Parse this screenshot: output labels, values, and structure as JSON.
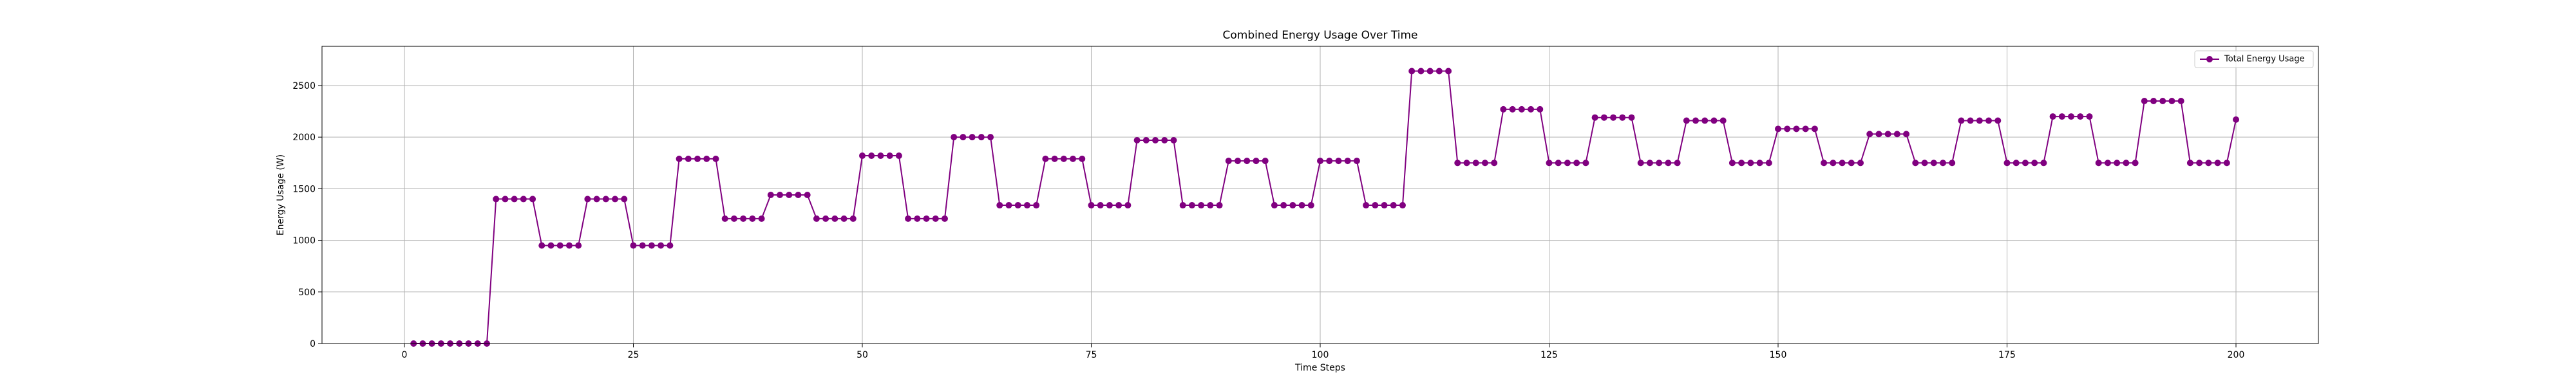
{
  "chart_data": {
    "type": "line",
    "title": "Combined Energy Usage Over Time",
    "xlabel": "Time Steps",
    "ylabel": "Energy Usage (W)",
    "xlim": [
      -9,
      209
    ],
    "ylim": [
      0,
      2880
    ],
    "xticks": [
      0,
      25,
      50,
      75,
      100,
      125,
      150,
      175,
      200
    ],
    "yticks": [
      0,
      500,
      1000,
      1500,
      2000,
      2500
    ],
    "grid": true,
    "legend_position": "top-right",
    "colors": {
      "series": "#800080"
    },
    "series": [
      {
        "name": "Total Energy Usage",
        "marker": "circle",
        "x": [
          1,
          2,
          3,
          4,
          5,
          6,
          7,
          8,
          9,
          10,
          11,
          12,
          13,
          14,
          15,
          16,
          17,
          18,
          19,
          20,
          21,
          22,
          23,
          24,
          25,
          26,
          27,
          28,
          29,
          30,
          31,
          32,
          33,
          34,
          35,
          36,
          37,
          38,
          39,
          40,
          41,
          42,
          43,
          44,
          45,
          46,
          47,
          48,
          49,
          50,
          51,
          52,
          53,
          54,
          55,
          56,
          57,
          58,
          59,
          60,
          61,
          62,
          63,
          64,
          65,
          66,
          67,
          68,
          69,
          70,
          71,
          72,
          73,
          74,
          75,
          76,
          77,
          78,
          79,
          80,
          81,
          82,
          83,
          84,
          85,
          86,
          87,
          88,
          89,
          90,
          91,
          92,
          93,
          94,
          95,
          96,
          97,
          98,
          99,
          100,
          101,
          102,
          103,
          104,
          105,
          106,
          107,
          108,
          109,
          110,
          111,
          112,
          113,
          114,
          115,
          116,
          117,
          118,
          119,
          120,
          121,
          122,
          123,
          124,
          125,
          126,
          127,
          128,
          129,
          130,
          131,
          132,
          133,
          134,
          135,
          136,
          137,
          138,
          139,
          140,
          141,
          142,
          143,
          144,
          145,
          146,
          147,
          148,
          149,
          150,
          151,
          152,
          153,
          154,
          155,
          156,
          157,
          158,
          159,
          160,
          161,
          162,
          163,
          164,
          165,
          166,
          167,
          168,
          169,
          170,
          171,
          172,
          173,
          174,
          175,
          176,
          177,
          178,
          179,
          180,
          181,
          182,
          183,
          184,
          185,
          186,
          187,
          188,
          189,
          190,
          191,
          192,
          193,
          194,
          195,
          196,
          197,
          198,
          199,
          200
        ],
        "y": [
          0,
          0,
          0,
          0,
          0,
          0,
          0,
          0,
          0,
          1400,
          1400,
          1400,
          1400,
          1400,
          950,
          950,
          950,
          950,
          950,
          1400,
          1400,
          1400,
          1400,
          1400,
          950,
          950,
          950,
          950,
          950,
          1790,
          1790,
          1790,
          1790,
          1790,
          1210,
          1210,
          1210,
          1210,
          1210,
          1440,
          1440,
          1440,
          1440,
          1440,
          1210,
          1210,
          1210,
          1210,
          1210,
          1820,
          1820,
          1820,
          1820,
          1820,
          1210,
          1210,
          1210,
          1210,
          1210,
          2000,
          2000,
          2000,
          2000,
          2000,
          1340,
          1340,
          1340,
          1340,
          1340,
          1790,
          1790,
          1790,
          1790,
          1790,
          1340,
          1340,
          1340,
          1340,
          1340,
          1970,
          1970,
          1970,
          1970,
          1970,
          1340,
          1340,
          1340,
          1340,
          1340,
          1770,
          1770,
          1770,
          1770,
          1770,
          1340,
          1340,
          1340,
          1340,
          1340,
          1770,
          1770,
          1770,
          1770,
          1770,
          1340,
          1340,
          1340,
          1340,
          1340,
          2640,
          2640,
          2640,
          2640,
          2640,
          1750,
          1750,
          1750,
          1750,
          1750,
          2270,
          2270,
          2270,
          2270,
          2270,
          1750,
          1750,
          1750,
          1750,
          1750,
          2190,
          2190,
          2190,
          2190,
          2190,
          1750,
          1750,
          1750,
          1750,
          1750,
          2160,
          2160,
          2160,
          2160,
          2160,
          1750,
          1750,
          1750,
          1750,
          1750,
          2080,
          2080,
          2080,
          2080,
          2080,
          1750,
          1750,
          1750,
          1750,
          1750,
          2030,
          2030,
          2030,
          2030,
          2030,
          1750,
          1750,
          1750,
          1750,
          1750,
          2160,
          2160,
          2160,
          2160,
          2160,
          1750,
          1750,
          1750,
          1750,
          1750,
          2200,
          2200,
          2200,
          2200,
          2200,
          1750,
          1750,
          1750,
          1750,
          1750,
          2350,
          2350,
          2350,
          2350,
          2350,
          1750,
          1750,
          1750,
          1750,
          1750,
          2170
        ]
      }
    ]
  }
}
